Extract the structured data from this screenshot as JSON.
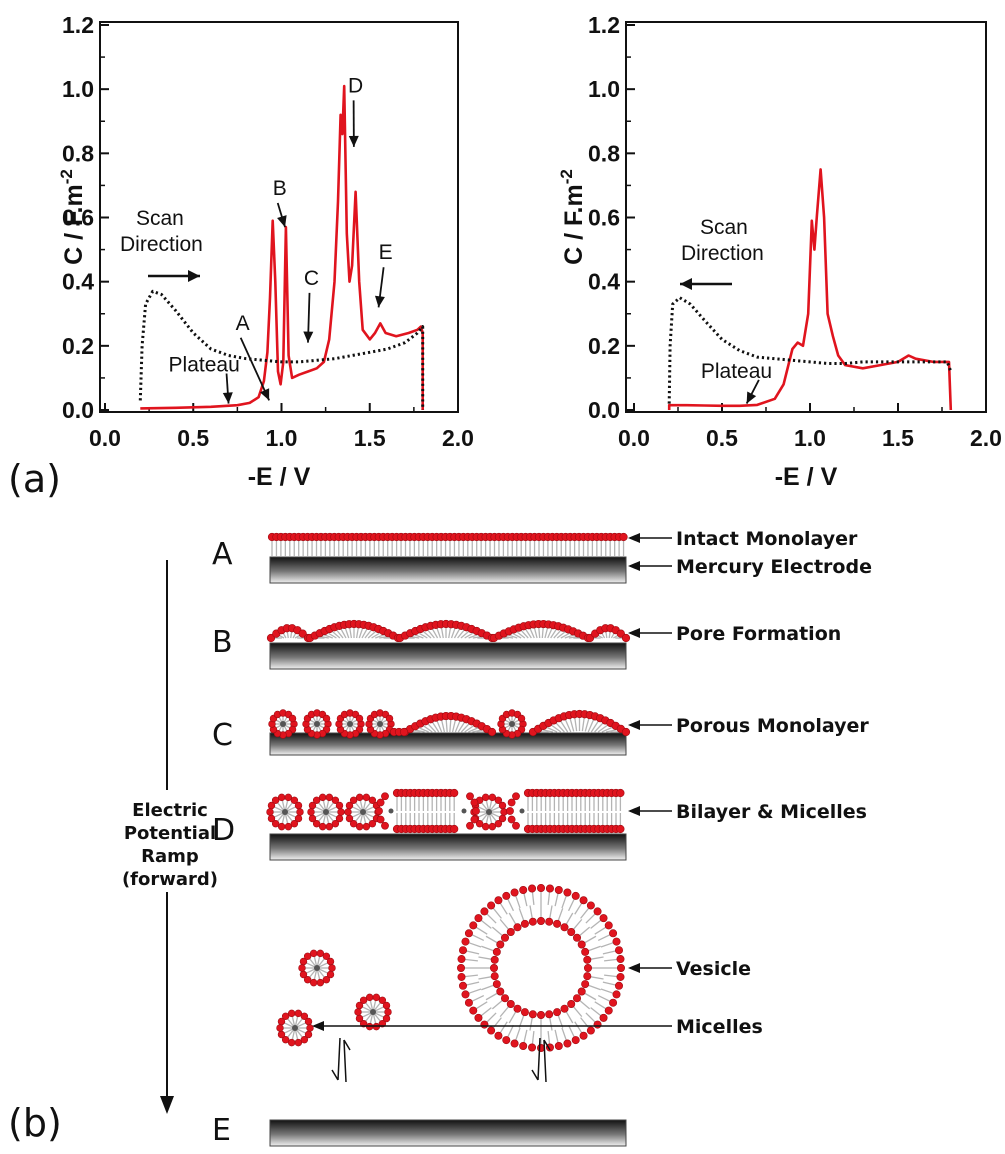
{
  "chart_data": [
    {
      "type": "line",
      "panel": "(a)",
      "xlabel": "-E / V",
      "ylabel": "C / F.m",
      "ylabel_exp": "-2",
      "xlim": [
        0.0,
        2.0
      ],
      "ylim": [
        0.0,
        1.2
      ],
      "xticks": [
        "0.0",
        "0.5",
        "1.0",
        "1.5",
        "2.0"
      ],
      "yticks": [
        "0.0",
        "0.2",
        "0.4",
        "0.6",
        "0.8",
        "1.0",
        "1.2"
      ],
      "scan_text": [
        "Scan",
        "Direction"
      ],
      "scan_arrow": "right",
      "series": [
        {
          "style": "solid",
          "color": "#e0141e",
          "points": [
            [
              0.2,
              0.005
            ],
            [
              0.4,
              0.007
            ],
            [
              0.6,
              0.01
            ],
            [
              0.75,
              0.015
            ],
            [
              0.82,
              0.022
            ],
            [
              0.87,
              0.04
            ],
            [
              0.9,
              0.09
            ],
            [
              0.92,
              0.18
            ],
            [
              0.935,
              0.35
            ],
            [
              0.95,
              0.59
            ],
            [
              0.965,
              0.4
            ],
            [
              0.98,
              0.12
            ],
            [
              0.995,
              0.08
            ],
            [
              1.01,
              0.15
            ],
            [
              1.025,
              0.57
            ],
            [
              1.04,
              0.17
            ],
            [
              1.06,
              0.1
            ],
            [
              1.1,
              0.11
            ],
            [
              1.15,
              0.12
            ],
            [
              1.2,
              0.13
            ],
            [
              1.24,
              0.15
            ],
            [
              1.27,
              0.22
            ],
            [
              1.3,
              0.4
            ],
            [
              1.32,
              0.65
            ],
            [
              1.335,
              0.92
            ],
            [
              1.345,
              0.86
            ],
            [
              1.355,
              1.01
            ],
            [
              1.37,
              0.55
            ],
            [
              1.385,
              0.4
            ],
            [
              1.4,
              0.45
            ],
            [
              1.42,
              0.68
            ],
            [
              1.44,
              0.4
            ],
            [
              1.46,
              0.25
            ],
            [
              1.5,
              0.22
            ],
            [
              1.53,
              0.24
            ],
            [
              1.56,
              0.27
            ],
            [
              1.59,
              0.24
            ],
            [
              1.65,
              0.23
            ],
            [
              1.72,
              0.24
            ],
            [
              1.77,
              0.25
            ],
            [
              1.79,
              0.26
            ],
            [
              1.8,
              0.24
            ],
            [
              1.8,
              0.0
            ]
          ]
        },
        {
          "style": "dotted",
          "color": "#111111",
          "points": [
            [
              0.2,
              0.03
            ],
            [
              0.21,
              0.2
            ],
            [
              0.23,
              0.33
            ],
            [
              0.27,
              0.37
            ],
            [
              0.32,
              0.36
            ],
            [
              0.4,
              0.31
            ],
            [
              0.5,
              0.24
            ],
            [
              0.6,
              0.19
            ],
            [
              0.7,
              0.17
            ],
            [
              0.8,
              0.16
            ],
            [
              0.9,
              0.155
            ],
            [
              1.0,
              0.15
            ],
            [
              1.1,
              0.15
            ],
            [
              1.2,
              0.155
            ],
            [
              1.3,
              0.16
            ],
            [
              1.4,
              0.17
            ],
            [
              1.5,
              0.18
            ],
            [
              1.6,
              0.19
            ],
            [
              1.7,
              0.21
            ],
            [
              1.77,
              0.24
            ],
            [
              1.8,
              0.26
            ],
            [
              1.8,
              0.0
            ]
          ]
        }
      ],
      "labels": [
        {
          "text": "A",
          "x": 0.78,
          "y": 0.25,
          "ax": 0.93,
          "ay": 0.03
        },
        {
          "text": "B",
          "x": 0.99,
          "y": 0.67,
          "ax": 1.02,
          "ay": 0.57
        },
        {
          "text": "C",
          "x": 1.17,
          "y": 0.39,
          "ax": 1.15,
          "ay": 0.21
        },
        {
          "text": "D",
          "x": 1.42,
          "y": 0.99,
          "ax": 1.41,
          "ay": 0.82
        },
        {
          "text": "E",
          "x": 1.59,
          "y": 0.47,
          "ax": 1.55,
          "ay": 0.32
        },
        {
          "text": "Plateau",
          "x": 0.36,
          "y": 0.12,
          "ax": 0.7,
          "ay": 0.02
        }
      ]
    },
    {
      "type": "line",
      "xlabel": "-E / V",
      "ylabel": "C / F.m",
      "ylabel_exp": "-2",
      "xlim": [
        0.0,
        2.0
      ],
      "ylim": [
        0.0,
        1.2
      ],
      "xticks": [
        "0.0",
        "0.5",
        "1.0",
        "1.5",
        "2.0"
      ],
      "yticks": [
        "0.0",
        "0.2",
        "0.4",
        "0.6",
        "0.8",
        "1.0",
        "1.2"
      ],
      "scan_text": [
        "Scan",
        "Direction"
      ],
      "scan_arrow": "left",
      "series": [
        {
          "style": "solid",
          "color": "#e0141e",
          "points": [
            [
              0.2,
              0.0
            ],
            [
              0.2,
              0.015
            ],
            [
              0.3,
              0.015
            ],
            [
              0.4,
              0.014
            ],
            [
              0.5,
              0.013
            ],
            [
              0.6,
              0.013
            ],
            [
              0.7,
              0.016
            ],
            [
              0.8,
              0.035
            ],
            [
              0.85,
              0.08
            ],
            [
              0.9,
              0.19
            ],
            [
              0.93,
              0.21
            ],
            [
              0.96,
              0.2
            ],
            [
              0.99,
              0.3
            ],
            [
              1.01,
              0.59
            ],
            [
              1.025,
              0.5
            ],
            [
              1.04,
              0.61
            ],
            [
              1.06,
              0.75
            ],
            [
              1.08,
              0.6
            ],
            [
              1.1,
              0.3
            ],
            [
              1.13,
              0.23
            ],
            [
              1.16,
              0.17
            ],
            [
              1.2,
              0.14
            ],
            [
              1.3,
              0.13
            ],
            [
              1.4,
              0.14
            ],
            [
              1.5,
              0.15
            ],
            [
              1.56,
              0.17
            ],
            [
              1.6,
              0.16
            ],
            [
              1.7,
              0.15
            ],
            [
              1.79,
              0.15
            ],
            [
              1.8,
              0.0
            ]
          ]
        },
        {
          "style": "dotted",
          "color": "#111111",
          "points": [
            [
              0.2,
              0.02
            ],
            [
              0.205,
              0.2
            ],
            [
              0.22,
              0.33
            ],
            [
              0.26,
              0.35
            ],
            [
              0.32,
              0.33
            ],
            [
              0.4,
              0.28
            ],
            [
              0.5,
              0.22
            ],
            [
              0.6,
              0.185
            ],
            [
              0.7,
              0.165
            ],
            [
              0.8,
              0.16
            ],
            [
              0.9,
              0.155
            ],
            [
              1.0,
              0.15
            ],
            [
              1.1,
              0.145
            ],
            [
              1.2,
              0.145
            ],
            [
              1.3,
              0.15
            ],
            [
              1.4,
              0.15
            ],
            [
              1.5,
              0.15
            ],
            [
              1.6,
              0.15
            ],
            [
              1.7,
              0.15
            ],
            [
              1.78,
              0.15
            ],
            [
              1.8,
              0.12
            ]
          ]
        }
      ],
      "labels": [
        {
          "text": "Plateau",
          "x": 0.38,
          "y": 0.1,
          "ax": 0.64,
          "ay": 0.02
        }
      ]
    }
  ],
  "schematic": {
    "panel": "(b)",
    "rows": [
      {
        "letter": "A",
        "labels": [
          "Intact Monolayer",
          "Mercury Electrode"
        ]
      },
      {
        "letter": "B",
        "labels": [
          "Pore Formation"
        ]
      },
      {
        "letter": "C",
        "labels": [
          "Porous Monolayer"
        ]
      },
      {
        "letter": "D",
        "labels": [
          "Bilayer & Micelles"
        ]
      },
      {
        "letter": "E",
        "labels": [
          "Vesicle",
          "Micelles"
        ]
      }
    ],
    "ramp_label": [
      "Electric",
      "Potential",
      "Ramp",
      "(forward)"
    ],
    "colors": {
      "headgroup": "#e0141e",
      "headgroup_edge": "#9e0b12",
      "tail": "#b4b4b4",
      "electrode_dark": "#111111",
      "electrode_light": "#f0f0f0"
    }
  }
}
